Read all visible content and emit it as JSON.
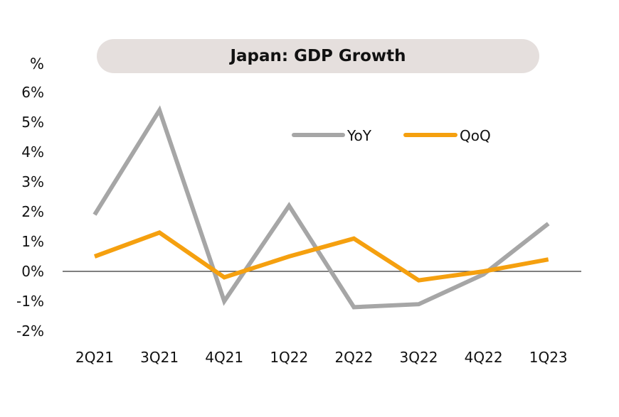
{
  "chart_data": {
    "type": "line",
    "title": "Japan: GDP Growth",
    "ylabel": "%",
    "categories": [
      "2Q21",
      "3Q21",
      "4Q21",
      "1Q22",
      "2Q22",
      "3Q22",
      "4Q22",
      "1Q23"
    ],
    "yticks": [
      "-2%",
      "-1%",
      "0%",
      "1%",
      "2%",
      "3%",
      "4%",
      "5%",
      "6%"
    ],
    "ylim": [
      -2,
      6
    ],
    "grid": false,
    "legend_position": "top-right",
    "series": [
      {
        "name": "YoY",
        "color": "#a6a6a6",
        "values": [
          1.9,
          5.4,
          -1.0,
          2.2,
          -1.2,
          -1.1,
          -0.1,
          1.6
        ]
      },
      {
        "name": "QoQ",
        "color": "#f5a00f",
        "values": [
          0.5,
          1.3,
          -0.2,
          0.5,
          1.1,
          -0.3,
          0.0,
          0.4
        ]
      }
    ]
  }
}
